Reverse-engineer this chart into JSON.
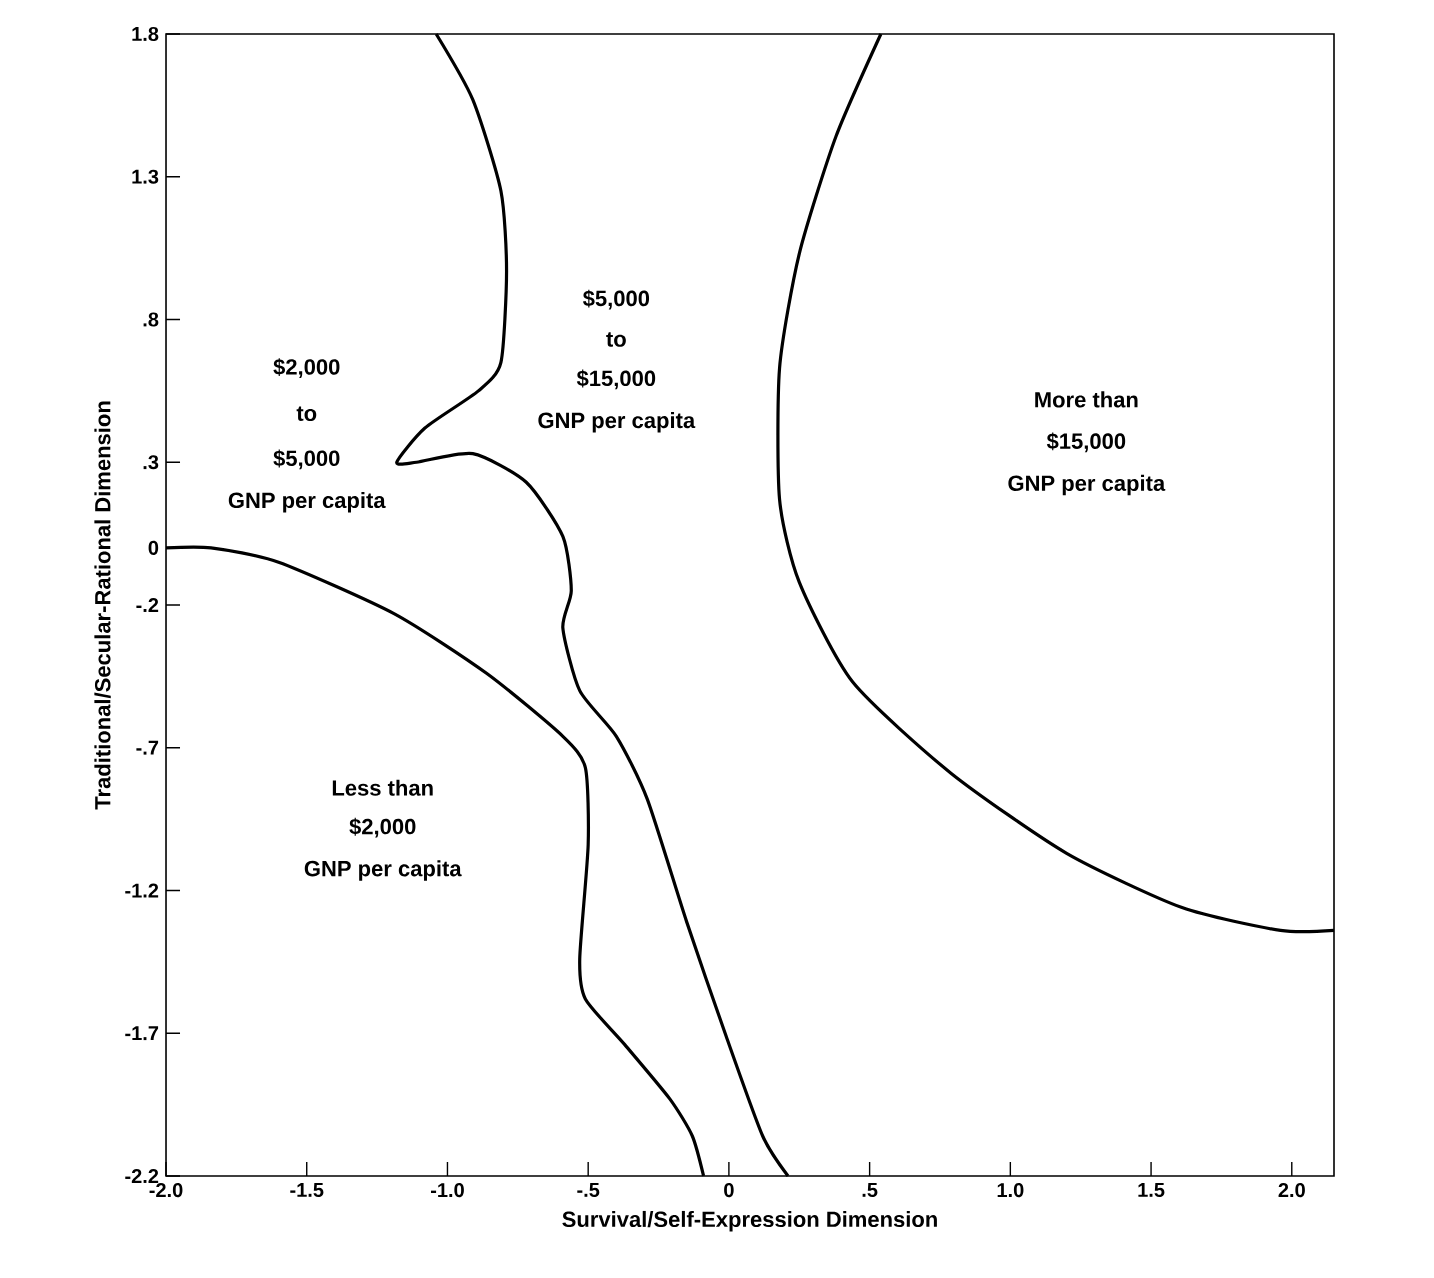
{
  "chart_data": {
    "type": "line",
    "xlabel": "Survival/Self-Expression Dimension",
    "ylabel": "Traditional/Secular-Rational Dimension",
    "xlim": [
      -2.0,
      2.15
    ],
    "ylim": [
      -2.2,
      1.8
    ],
    "xticks": [
      {
        "value": -2.0,
        "label": "-2.0"
      },
      {
        "value": -1.5,
        "label": "-1.5"
      },
      {
        "value": -1.0,
        "label": "-1.0"
      },
      {
        "value": -0.5,
        "label": "-.5"
      },
      0,
      {
        "value": 0.5,
        "label": ".5"
      },
      {
        "value": 1.0,
        "label": "1.0"
      },
      {
        "value": 1.5,
        "label": "1.5"
      },
      {
        "value": 2.0,
        "label": "2.0"
      }
    ],
    "yticks": [
      1.8,
      1.3,
      {
        "value": 0.8,
        "label": ".8"
      },
      {
        "value": 0.3,
        "label": ".3"
      },
      0,
      {
        "value": -0.2,
        "label": "-.2"
      },
      {
        "value": -0.7,
        "label": "-.7"
      },
      -1.2,
      -1.7,
      -2.2
    ],
    "marker": "none",
    "line_style": "solid",
    "series": [
      {
        "color": "#000000",
        "x": [
          -2.0,
          -1.84,
          -1.6,
          -1.19,
          -0.86,
          -0.59,
          -0.51,
          -0.5,
          -0.53,
          -0.51,
          -0.37,
          -0.21,
          -0.13,
          -0.09
        ],
        "values": [
          0.0,
          0.0,
          -0.05,
          -0.23,
          -0.44,
          -0.66,
          -0.77,
          -1.04,
          -1.44,
          -1.58,
          -1.74,
          -1.93,
          -2.06,
          -2.2
        ]
      },
      {
        "color": "#000000",
        "x": [
          -1.04,
          -0.91,
          -0.81,
          -0.79,
          -0.81,
          -0.89,
          -1.08,
          -1.18,
          -1.11,
          -0.91,
          -0.72,
          -0.59,
          -0.56,
          -0.59,
          -0.53,
          -0.4,
          -0.29,
          -0.15,
          -0.01,
          0.12,
          0.21
        ],
        "values": [
          1.8,
          1.57,
          1.25,
          0.97,
          0.65,
          0.55,
          0.42,
          0.3,
          0.3,
          0.33,
          0.23,
          0.04,
          -0.15,
          -0.28,
          -0.5,
          -0.66,
          -0.88,
          -1.31,
          -1.71,
          -2.06,
          -2.2
        ]
      },
      {
        "color": "#000000",
        "x": [
          0.54,
          0.38,
          0.25,
          0.18,
          0.18,
          0.25,
          0.44,
          0.79,
          1.2,
          1.61,
          1.96,
          2.15
        ],
        "values": [
          1.8,
          1.44,
          1.03,
          0.63,
          0.17,
          -0.12,
          -0.47,
          -0.79,
          -1.07,
          -1.26,
          -1.34,
          -1.34
        ]
      }
    ],
    "annotations": [
      "$2,000",
      "to",
      "$5,000",
      "GNP per capita",
      "$5,000",
      "to",
      "$15,000",
      "GNP per capita",
      "More than",
      "$15,000",
      "GNP per capita",
      "Less than",
      "$2,000",
      "GNP per capita"
    ]
  }
}
